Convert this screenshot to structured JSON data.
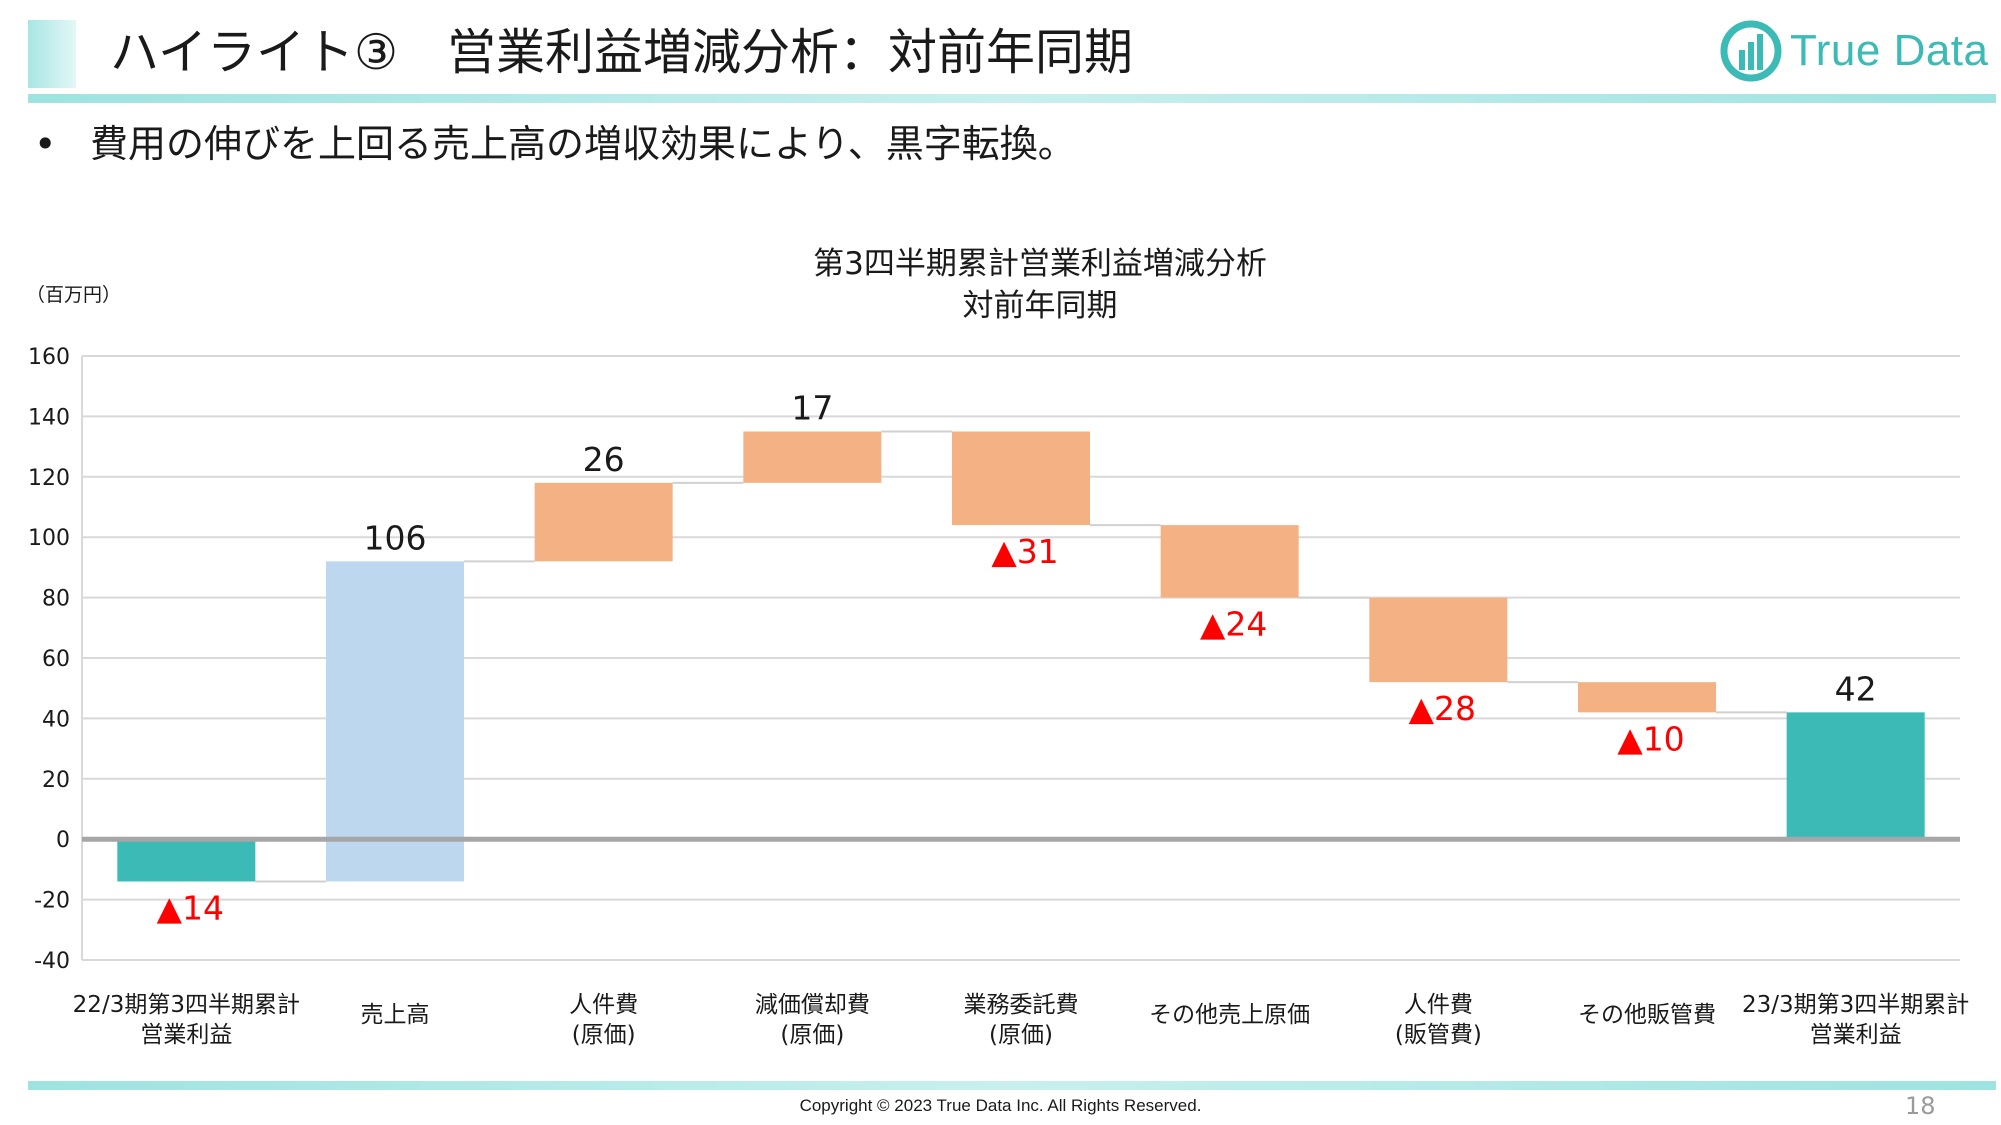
{
  "header": {
    "title": "ハイライト③　営業利益増減分析：対前年同期",
    "brand_name": "True Data"
  },
  "bullet": {
    "marker": "•",
    "text": "費用の伸びを上回る売上高の増収効果により、黒字転換。"
  },
  "footer": {
    "copyright": "Copyright © 2023 True Data Inc. All Rights Reserved.",
    "page_number": "18"
  },
  "colors": {
    "accent": "#3bbab6",
    "increase": "#bcd7ee",
    "decrease": "#f4b183",
    "total": "#3bbab6",
    "negative_label": "#ff0000",
    "grid": "#d9d9d9",
    "zero_line": "#a6a6a6"
  },
  "chart_data": {
    "type": "waterfall",
    "title": [
      "第3四半期累計営業利益増減分析",
      "対前年同期"
    ],
    "unit_label": "（百万円）",
    "ylim": [
      -40,
      160
    ],
    "yticks": [
      160,
      140,
      120,
      100,
      80,
      60,
      40,
      20,
      0,
      -20,
      -40
    ],
    "grid": true,
    "categories": [
      [
        "22/3期第3四半期累計",
        "営業利益"
      ],
      [
        "売上高"
      ],
      [
        "人件費",
        "(原価)"
      ],
      [
        "減価償却費",
        "(原価)"
      ],
      [
        "業務委託費",
        "(原価)"
      ],
      [
        "その他売上原価"
      ],
      [
        "人件費",
        "(販管費)"
      ],
      [
        "その他販管費"
      ],
      [
        "23/3期第3四半期累計",
        "営業利益"
      ]
    ],
    "bars": [
      {
        "kind": "total",
        "start": 0,
        "end": -14,
        "label": "▲14",
        "negative": true
      },
      {
        "kind": "increase",
        "start": -14,
        "end": 92,
        "label": "106",
        "negative": false
      },
      {
        "kind": "decrease",
        "start": 92,
        "end": 118,
        "label": "26",
        "negative": false
      },
      {
        "kind": "decrease",
        "start": 118,
        "end": 135,
        "label": "17",
        "negative": false
      },
      {
        "kind": "decrease",
        "start": 135,
        "end": 104,
        "label": "▲31",
        "negative": true
      },
      {
        "kind": "decrease",
        "start": 104,
        "end": 80,
        "label": "▲24",
        "negative": true
      },
      {
        "kind": "decrease",
        "start": 80,
        "end": 52,
        "label": "▲28",
        "negative": true
      },
      {
        "kind": "decrease",
        "start": 52,
        "end": 42,
        "label": "▲10",
        "negative": true
      },
      {
        "kind": "total",
        "start": 0,
        "end": 42,
        "label": "42",
        "negative": false
      }
    ]
  }
}
